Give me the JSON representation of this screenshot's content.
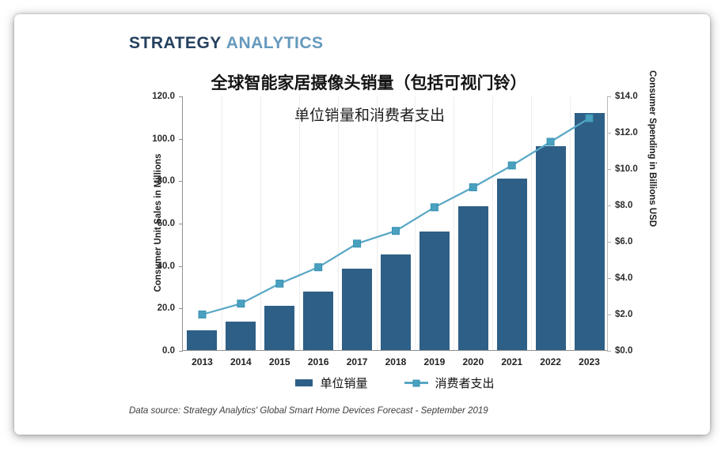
{
  "brand": {
    "part1": "STRATEGY",
    "part2": "ANALYTICS"
  },
  "header": {
    "title": "全球智能家居摄像头销量（包括可视门铃）",
    "subtitle": "单位销量和消费者支出"
  },
  "source_note": "Data source: Strategy Analytics' Global Smart Home Devices Forecast - September 2019",
  "legend": [
    {
      "label": "单位销量",
      "type": "bar"
    },
    {
      "label": "消费者支出",
      "type": "line"
    }
  ],
  "colors": {
    "bar": "#2e5f86",
    "line": "#58a7c5",
    "marker_fill": "#49a0bf",
    "marker_border": "#3a92b3",
    "logo_dark": "#24405e",
    "logo_light": "#6699bd"
  },
  "chart_data": {
    "type": "bar",
    "title": "全球智能家居摄像头销量（包括可视门铃）",
    "subtitle": "单位销量和消费者支出",
    "categories": [
      "2013",
      "2014",
      "2015",
      "2016",
      "2017",
      "2018",
      "2019",
      "2020",
      "2021",
      "2022",
      "2023"
    ],
    "series": [
      {
        "name": "单位销量",
        "type": "bar",
        "axis": "left",
        "values": [
          9.5,
          13.5,
          21.0,
          27.5,
          38.5,
          45.0,
          56.0,
          68.0,
          81.0,
          96.0,
          112.0
        ]
      },
      {
        "name": "消费者支出",
        "type": "line",
        "axis": "right",
        "values": [
          2.0,
          2.6,
          3.7,
          4.6,
          5.9,
          6.6,
          7.9,
          9.0,
          10.2,
          11.5,
          12.8
        ]
      }
    ],
    "left_axis": {
      "label": "Consumer Unit Sales in Millions",
      "min": 0,
      "max": 120,
      "step": 20,
      "ticks": [
        "0.0",
        "20.0",
        "40.0",
        "60.0",
        "80.0",
        "100.0",
        "120.0"
      ]
    },
    "right_axis": {
      "label": "Consumer Spending in Billions USD",
      "min": 0,
      "max": 14,
      "step": 2,
      "ticks": [
        "$0.0",
        "$2.0",
        "$4.0",
        "$6.0",
        "$8.0",
        "$10.0",
        "$12.0",
        "$14.0"
      ]
    },
    "grid": "vertical-faint",
    "legend_position": "bottom"
  }
}
